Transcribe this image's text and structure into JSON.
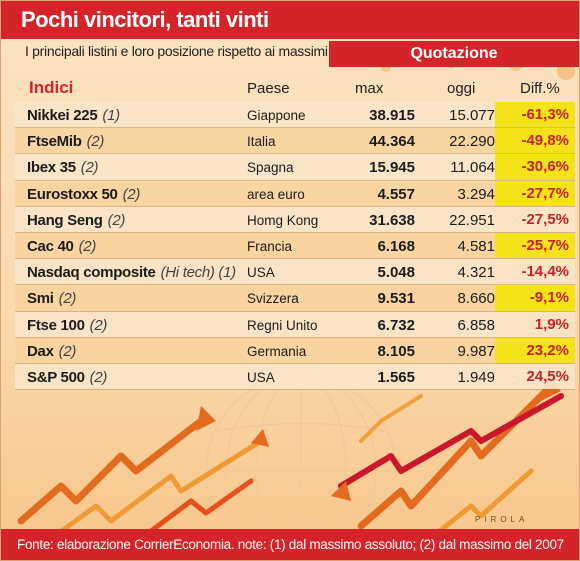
{
  "title": "Pochi vincitori, tanti vinti",
  "subtitle": "I principali listini e loro posizione rispetto ai massimi",
  "group_header": "Quotazione",
  "columns": {
    "index": "Indici",
    "country": "Paese",
    "max": "max",
    "today": "oggi",
    "diff": "Diff.%"
  },
  "signature": "PIROLA",
  "source": "Fonte: elaborazione CorrierEconomia. note: (1) dal massimo assoluto; (2) dal massimo del 2007",
  "colors": {
    "brand_red": "#d5232a",
    "highlight_yellow": "#f4e21a",
    "diff_text": "#c62227"
  },
  "chart_data": {
    "type": "table",
    "columns": [
      "Indici",
      "Paese",
      "max",
      "oggi",
      "Diff.%"
    ],
    "rows": [
      {
        "name": "Nikkei 225",
        "note": "(1)",
        "country": "Giappone",
        "max": "38.915",
        "today": "15.077",
        "diff": "-61,3%",
        "highlight": true
      },
      {
        "name": "FtseMib",
        "note": "(2)",
        "country": "Italia",
        "max": "44.364",
        "today": "22.290",
        "diff": "-49,8%",
        "highlight": true
      },
      {
        "name": "Ibex 35",
        "note": "(2)",
        "country": "Spagna",
        "max": "15.945",
        "today": "11.064",
        "diff": "-30,6%",
        "highlight": true
      },
      {
        "name": "Eurostoxx 50",
        "note": "(2)",
        "country": "area euro",
        "max": "4.557",
        "today": "3.294",
        "diff": "-27,7%",
        "highlight": true
      },
      {
        "name": "Hang Seng",
        "note": "(2)",
        "country": "Homg Kong",
        "max": "31.638",
        "today": "22.951",
        "diff": "-27,5%",
        "highlight": false
      },
      {
        "name": "Cac 40",
        "note": "(2)",
        "country": "Francia",
        "max": "6.168",
        "today": "4.581",
        "diff": "-25,7%",
        "highlight": true
      },
      {
        "name": "Nasdaq composite",
        "note": "(Hi tech) (1)",
        "country": "USA",
        "max": "5.048",
        "today": "4.321",
        "diff": "-14,4%",
        "highlight": false
      },
      {
        "name": "Smi",
        "note": "(2)",
        "country": "Svizzera",
        "max": "9.531",
        "today": "8.660",
        "diff": "-9,1%",
        "highlight": true
      },
      {
        "name": "Ftse 100",
        "note": "(2)",
        "country": "Regni Unito",
        "max": "6.732",
        "today": "6.858",
        "diff": "1,9%",
        "highlight": false
      },
      {
        "name": "Dax",
        "note": "(2)",
        "country": "Germania",
        "max": "8.105",
        "today": "9.987",
        "diff": "23,2%",
        "highlight": true
      },
      {
        "name": "S&P 500",
        "note": "(2)",
        "country": "USA",
        "max": "1.565",
        "today": "1.949",
        "diff": "24,5%",
        "highlight": false
      }
    ]
  }
}
